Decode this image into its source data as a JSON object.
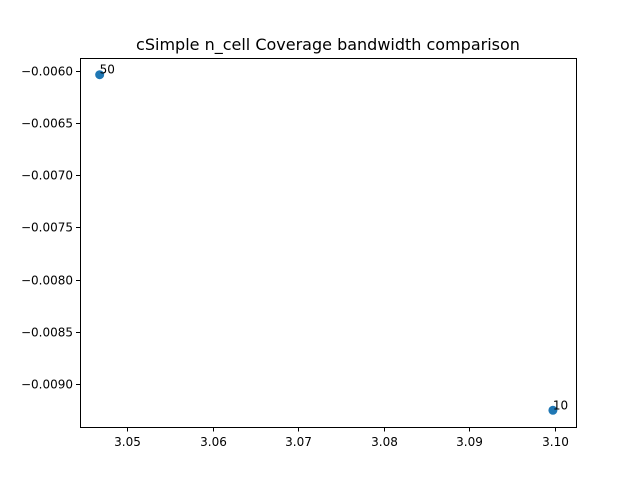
{
  "chart_data": {
    "type": "scatter",
    "title": "cSimple n_cell Coverage bandwidth comparison",
    "xlabel": "",
    "ylabel": "",
    "xlim": [
      3.0445,
      3.1025
    ],
    "ylim": [
      -0.00941,
      -0.00588
    ],
    "x_ticks": [
      3.05,
      3.06,
      3.07,
      3.08,
      3.09,
      3.1
    ],
    "x_tick_labels": [
      "3.05",
      "3.06",
      "3.07",
      "3.08",
      "3.09",
      "3.10"
    ],
    "y_ticks": [
      -0.006,
      -0.0065,
      -0.007,
      -0.0075,
      -0.008,
      -0.0085,
      -0.009
    ],
    "y_tick_labels": [
      "−0.0060",
      "−0.0065",
      "−0.0070",
      "−0.0075",
      "−0.0080",
      "−0.0085",
      "−0.0090"
    ],
    "grid": false,
    "points": [
      {
        "x": 3.0468,
        "y": -0.00604,
        "label": "50"
      },
      {
        "x": 3.0998,
        "y": -0.00925,
        "label": "10"
      }
    ],
    "colors": {
      "marker": "#1f77b4",
      "axes": "#000000"
    }
  }
}
